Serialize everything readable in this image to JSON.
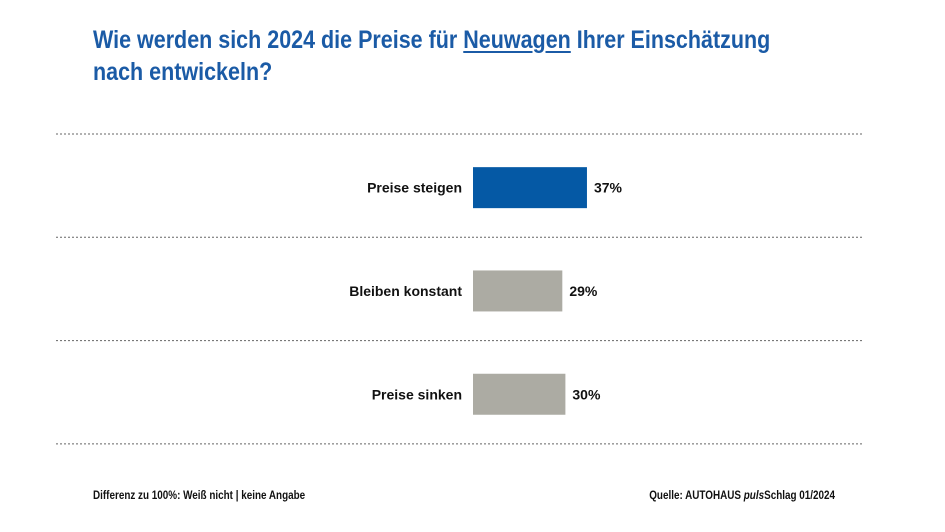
{
  "title": {
    "before": "Wie werden sich 2024 die Preise für ",
    "underlined": "Neuwagen",
    "after": " Ihrer Einschätzung",
    "line2": "nach entwickeln?"
  },
  "colors": {
    "highlight": "#0559a5",
    "other": "#acaba3",
    "title": "#1b5ba6"
  },
  "chart_data": {
    "type": "bar",
    "orientation": "horizontal",
    "categories": [
      "Preise steigen",
      "Bleiben konstant",
      "Preise sinken"
    ],
    "values": [
      37,
      29,
      30
    ],
    "labels": [
      "37%",
      "29%",
      "30%"
    ],
    "unit": "%",
    "grid": "dashed separators between categories",
    "legend": "none"
  },
  "footer": {
    "note": "Differenz zu 100%: Weiß nicht | keine Angabe",
    "source_prefix": "Quelle: AUTOHAUS ",
    "source_italic": "puls",
    "source_suffix": "Schlag 01/2024"
  }
}
